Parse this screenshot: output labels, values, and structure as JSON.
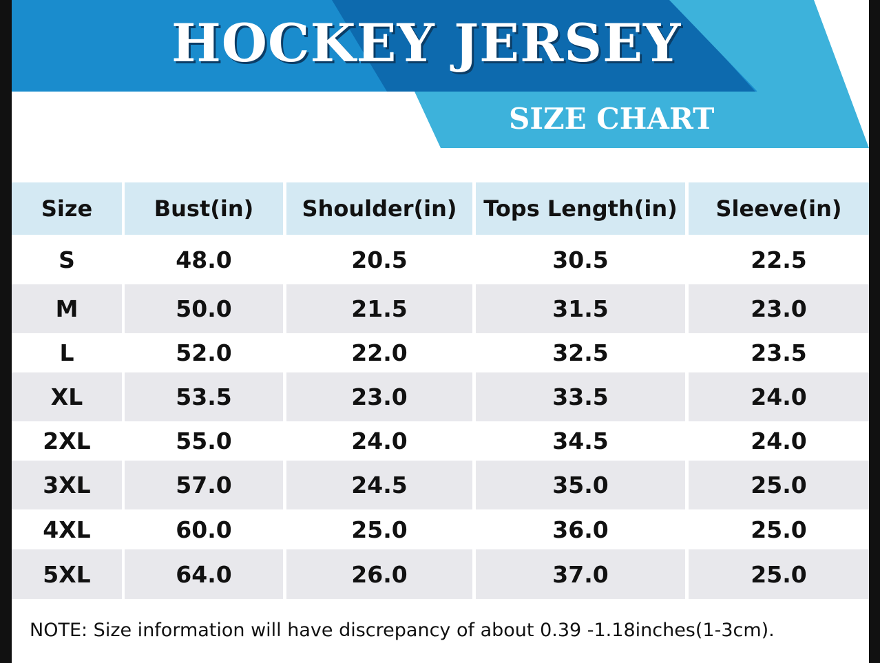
{
  "header": {
    "title": "HOCKEY JERSEY",
    "subtitle": "SIZE CHART"
  },
  "table": {
    "columns": [
      "Size",
      "Bust(in)",
      "Shoulder(in)",
      "Tops Length(in)",
      "Sleeve(in)"
    ],
    "rows": [
      [
        "S",
        "48.0",
        "20.5",
        "30.5",
        "22.5"
      ],
      [
        "M",
        "50.0",
        "21.5",
        "31.5",
        "23.0"
      ],
      [
        "L",
        "52.0",
        "22.0",
        "32.5",
        "23.5"
      ],
      [
        "XL",
        "53.5",
        "23.0",
        "33.5",
        "24.0"
      ],
      [
        "2XL",
        "55.0",
        "24.0",
        "34.5",
        "24.0"
      ],
      [
        "3XL",
        "57.0",
        "24.5",
        "35.0",
        "25.0"
      ],
      [
        "4XL",
        "60.0",
        "25.0",
        "36.0",
        "25.0"
      ],
      [
        "5XL",
        "64.0",
        "26.0",
        "37.0",
        "25.0"
      ]
    ]
  },
  "note": "NOTE: Size information will have discrepancy of about 0.39 -1.18inches(1-3cm)."
}
